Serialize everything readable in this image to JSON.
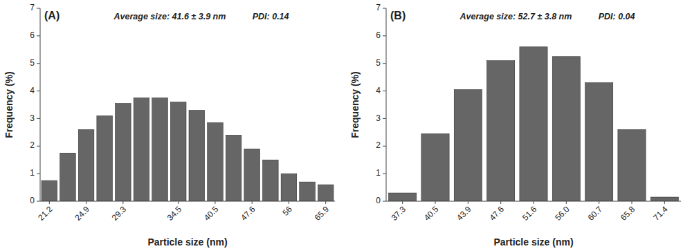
{
  "chart_data": [
    {
      "type": "bar",
      "title": "(A)",
      "categories": [
        "21.2",
        null,
        "24.9",
        null,
        "29.3",
        null,
        null,
        "34.5",
        null,
        "40.5",
        null,
        "47.6",
        null,
        "56",
        null,
        "65.9"
      ],
      "values": [
        0.75,
        1.75,
        2.6,
        3.1,
        3.55,
        3.75,
        3.75,
        3.6,
        3.3,
        2.85,
        2.4,
        1.9,
        1.5,
        1.0,
        0.7,
        0.6
      ],
      "color": "#666666",
      "annotations": [
        "Average size: 41.6 ± 3.9 nm",
        "PDI: 0.14"
      ],
      "xlabel": "Particle size (nm)",
      "ylabel": "Frequency (%)",
      "ylim": [
        0,
        7
      ],
      "yticks": [
        0,
        1,
        2,
        3,
        4,
        5,
        6,
        7
      ]
    },
    {
      "type": "bar",
      "title": "(B)",
      "categories": [
        "37.3",
        "40.5",
        "43.9",
        "47.6",
        "51.6",
        "56.0",
        "60.7",
        "65.8",
        "71.4"
      ],
      "values": [
        0.3,
        2.45,
        4.05,
        5.1,
        5.6,
        5.25,
        4.3,
        2.6,
        0.15
      ],
      "color": "#666666",
      "annotations": [
        "Average size:  52.7 ± 3.8 nm",
        "PDI: 0.04"
      ],
      "xlabel": "Particle size (nm)",
      "ylabel": "Frequency (%)",
      "ylim": [
        0,
        7
      ],
      "yticks": [
        0,
        1,
        2,
        3,
        4,
        5,
        6,
        7
      ]
    }
  ]
}
